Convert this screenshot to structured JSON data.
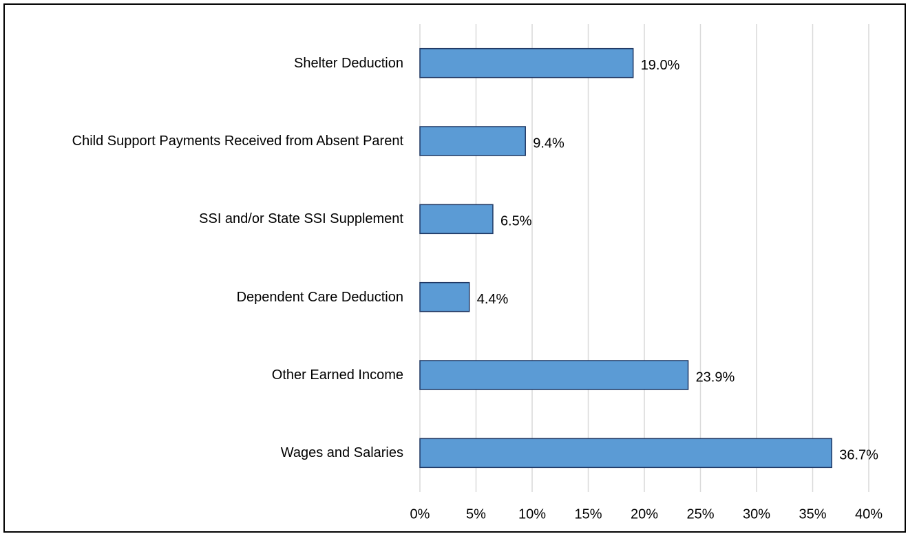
{
  "chart_data": {
    "type": "bar",
    "orientation": "horizontal",
    "categories": [
      "Shelter Deduction",
      "Child Support Payments Received from Absent Parent",
      "SSI and/or State SSI Supplement",
      "Dependent Care Deduction",
      "Other Earned Income",
      "Wages and Salaries"
    ],
    "values": [
      19.0,
      9.4,
      6.5,
      4.4,
      23.9,
      36.7
    ],
    "value_labels": [
      "19.0%",
      "9.4%",
      "6.5%",
      "4.4%",
      "23.9%",
      "36.7%"
    ],
    "color": "#5b9bd5",
    "xlim": [
      0,
      40
    ],
    "xticks": [
      {
        "value": 0,
        "label": "0%"
      },
      {
        "value": 5,
        "label": "5%"
      },
      {
        "value": 10,
        "label": "10%"
      },
      {
        "value": 15,
        "label": "15%"
      },
      {
        "value": 20,
        "label": "20%"
      },
      {
        "value": 25,
        "label": "25%"
      },
      {
        "value": 30,
        "label": "30%"
      },
      {
        "value": 35,
        "label": "35%"
      },
      {
        "value": 40,
        "label": "40%"
      }
    ],
    "grid": true
  }
}
